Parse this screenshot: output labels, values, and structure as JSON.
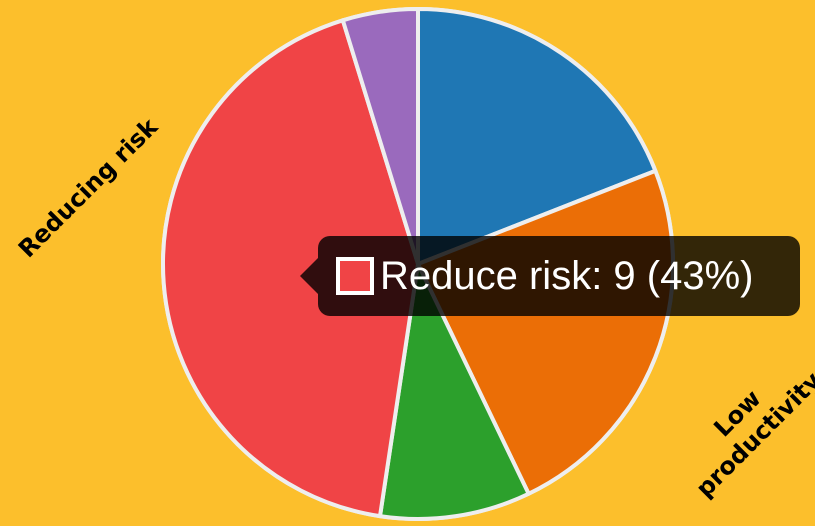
{
  "chart_data": {
    "type": "pie",
    "slices": [
      {
        "value": 4,
        "color": "#1f77b4"
      },
      {
        "value": 5,
        "color": "#eb6e06"
      },
      {
        "value": 2,
        "color": "#2ca02c"
      },
      {
        "name": "Reduce risk",
        "value": 9,
        "color": "#f04446"
      },
      {
        "value": 1,
        "color": "#9a6abd"
      }
    ],
    "border_color": "#eeeeee",
    "slice_labels": {
      "left": "Reducing risk",
      "right_line1": "Low",
      "right_line2": "productivity"
    },
    "tooltip": {
      "text": "Reduce risk: 9 (43%)",
      "swatch_color": "#f04446"
    }
  }
}
